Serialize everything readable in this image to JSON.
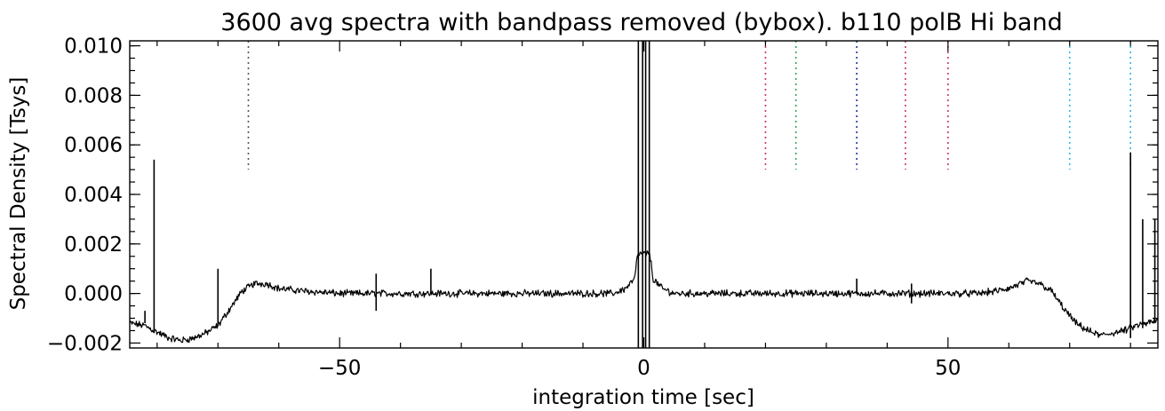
{
  "chart_data": {
    "type": "line",
    "title": "3600 avg spectra with bandpass removed (bybox). b110 polB Hi  band",
    "xlabel": "integration time [sec]",
    "ylabel": "Spectral Density [Tsys]",
    "xlim": [
      -84.5,
      84.5
    ],
    "ylim": [
      -0.0022,
      0.0102
    ],
    "grid": false,
    "legend": "none",
    "x_ticks": [
      -50,
      0,
      50
    ],
    "x_tick_labels": [
      "−50",
      "0",
      "50"
    ],
    "y_ticks": [
      -0.002,
      0.0,
      0.002,
      0.004,
      0.006,
      0.008,
      0.01
    ],
    "y_tick_labels": [
      "−0.002",
      "0.000",
      "0.002",
      "0.004",
      "0.006",
      "0.008",
      "0.010"
    ],
    "series": [
      {
        "color": "#000000",
        "x": [
          -84.5,
          -82,
          -80.5,
          -78,
          -76,
          -74,
          -72,
          -70,
          -68,
          -66,
          -64,
          -62,
          -60,
          -56,
          -50,
          -44,
          -40,
          -34,
          -30,
          -20,
          -10,
          -5,
          -3,
          -1.5,
          -1,
          1,
          1.5,
          3,
          5,
          10,
          20,
          30,
          40,
          45,
          50,
          55,
          58,
          60,
          63,
          65,
          67,
          69,
          71,
          73,
          75,
          77,
          79,
          81,
          84.5
        ],
        "y": [
          -0.0012,
          -0.0013,
          -0.0015,
          -0.0018,
          -0.0019,
          -0.0018,
          -0.0016,
          -0.0013,
          -0.0006,
          0.0001,
          0.0004,
          0.0004,
          0.0002,
          0.0001,
          0.0,
          0.0,
          0.0,
          0.0,
          0.0,
          0.0,
          0.0,
          0.0,
          0.0002,
          0.0006,
          0.0016,
          0.0016,
          0.0006,
          0.0002,
          0.0,
          0.0,
          0.0,
          0.0,
          0.0,
          0.0,
          0.0,
          0.0,
          0.0001,
          0.0002,
          0.0005,
          0.0004,
          0.0001,
          -0.0006,
          -0.0012,
          -0.0015,
          -0.0017,
          -0.0016,
          -0.0015,
          -0.0013,
          -0.0011
        ]
      }
    ],
    "spikes": [
      {
        "x": -82,
        "from": -0.0012,
        "to": -0.0007
      },
      {
        "x": -80.5,
        "from": -0.0016,
        "to": 0.0054
      },
      {
        "x": -70,
        "from": -0.0013,
        "to": 0.001
      },
      {
        "x": -44,
        "from": -0.0007,
        "to": 0.0008
      },
      {
        "x": -35,
        "from": 0.0,
        "to": 0.001
      },
      {
        "x": -0.9,
        "from": -0.0022,
        "to": 0.0102
      },
      {
        "x": -0.2,
        "from": -0.0022,
        "to": 0.0102
      },
      {
        "x": 0.3,
        "from": -0.0022,
        "to": 0.0102
      },
      {
        "x": 0.9,
        "from": -0.0022,
        "to": 0.0102
      },
      {
        "x": 35,
        "from": 0.0,
        "to": 0.0006
      },
      {
        "x": 44,
        "from": -0.0004,
        "to": 0.0004
      },
      {
        "x": 80,
        "from": -0.0018,
        "to": 0.0057
      },
      {
        "x": 82,
        "from": -0.0014,
        "to": 0.003
      },
      {
        "x": 84,
        "from": -0.0012,
        "to": 0.003
      }
    ],
    "markers": [
      {
        "x": -65,
        "color": "#555555",
        "from": 0.005,
        "to": 0.0102
      },
      {
        "x": 20,
        "color": "#d0306a",
        "from": 0.005,
        "to": 0.0102
      },
      {
        "x": 25,
        "color": "#2fa84f",
        "from": 0.005,
        "to": 0.0102
      },
      {
        "x": 35,
        "color": "#2030a0",
        "from": 0.005,
        "to": 0.0102
      },
      {
        "x": 43,
        "color": "#d0306a",
        "from": 0.005,
        "to": 0.0102
      },
      {
        "x": 50,
        "color": "#d0306a",
        "from": 0.005,
        "to": 0.0102
      },
      {
        "x": 70,
        "color": "#30b8e0",
        "from": 0.005,
        "to": 0.0102
      },
      {
        "x": 80,
        "color": "#30b8e0",
        "from": 0.005,
        "to": 0.0102
      }
    ]
  }
}
